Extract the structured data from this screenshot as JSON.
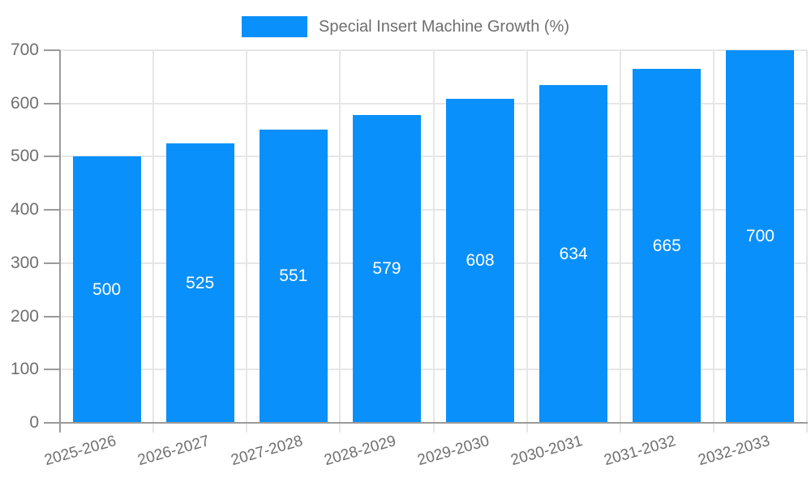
{
  "chart_data": {
    "type": "bar",
    "title": "Special Insert Machine Growth (%)",
    "xlabel": "",
    "ylabel": "",
    "categories": [
      "2025-2026",
      "2026-2027",
      "2027-2028",
      "2028-2029",
      "2029-2030",
      "2030-2031",
      "2031-2032",
      "2032-2033"
    ],
    "values": [
      500,
      525,
      551,
      579,
      608,
      634,
      665,
      700
    ],
    "ylim": [
      0,
      700
    ],
    "yticks": [
      0,
      100,
      200,
      300,
      400,
      500,
      600,
      700
    ],
    "grid": true,
    "legend": {
      "position": "top",
      "label": "Special Insert Machine Growth (%)"
    },
    "colors": {
      "bar": "#0A90FA",
      "value_label": "#FFFFFF",
      "grid_line": "#E6E6E6",
      "axis_line": "#9A9A9A",
      "tick_text": "#6F6F6F",
      "background": "#FFFFFF"
    }
  }
}
